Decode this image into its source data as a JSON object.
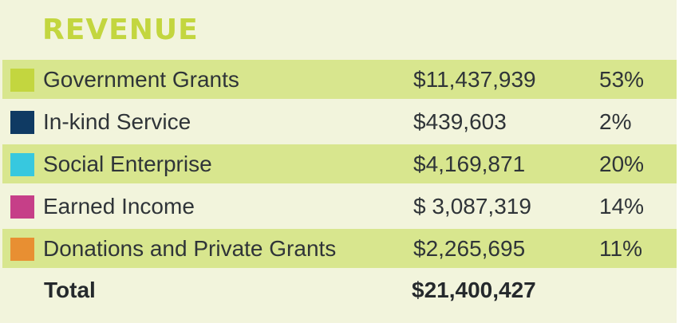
{
  "title": "REVENUE",
  "rows": [
    {
      "label": "Government Grants",
      "amount": "$11,437,939",
      "percent": "53%",
      "color": "#c3d63f"
    },
    {
      "label": "In-kind  Service",
      "amount": "$439,603",
      "percent": "2%",
      "color": "#0f3a63"
    },
    {
      "label": "Social Enterprise",
      "amount": "$4,169,871",
      "percent": "20%",
      "color": "#37c8df"
    },
    {
      "label": "Earned Income",
      "amount": "$ 3,087,319",
      "percent": "14%",
      "color": "#c63f88"
    },
    {
      "label": "Donations and Private Grants",
      "amount": "$2,265,695",
      "percent": "11%",
      "color": "#e88f32"
    }
  ],
  "total": {
    "label": "Total",
    "amount": "$21,400,427"
  },
  "colors": {
    "title": "#c3d63f",
    "panel_background": "#f2f4dc",
    "stripe": "#d8e68e",
    "text": "#2f3438"
  }
}
